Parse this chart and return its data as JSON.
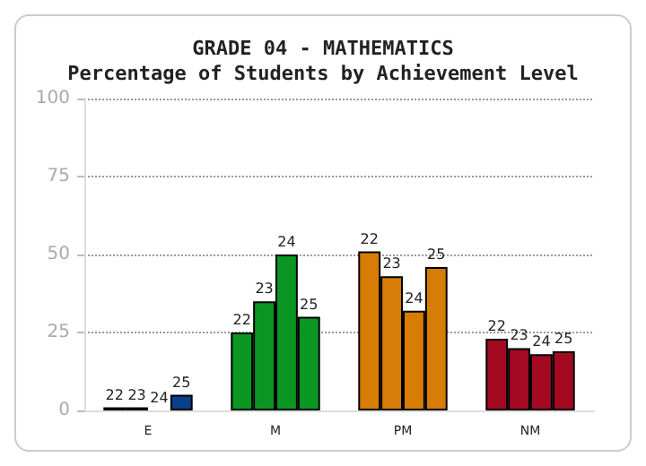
{
  "chart_data": {
    "type": "bar",
    "title": "GRADE 04 - MATHEMATICS\nPercentage of Students by Achievement Level",
    "categories": [
      "E",
      "M",
      "PM",
      "NM"
    ],
    "series": [
      {
        "name": "22",
        "colors": [
          "#0a3f8a",
          "#0b9623",
          "#d77c06",
          "#a30a22"
        ],
        "values": [
          1,
          25,
          51,
          23
        ]
      },
      {
        "name": "23",
        "colors": [
          "#0a3f8a",
          "#0b9623",
          "#d77c06",
          "#a30a22"
        ],
        "values": [
          1,
          35,
          43,
          20
        ]
      },
      {
        "name": "24",
        "colors": [
          "#0a3f8a",
          "#0b9623",
          "#d77c06",
          "#a30a22"
        ],
        "values": [
          0,
          50,
          32,
          18
        ]
      },
      {
        "name": "25",
        "colors": [
          "#0a3f8a",
          "#0b9623",
          "#d77c06",
          "#a30a22"
        ],
        "values": [
          5,
          30,
          46,
          19
        ]
      }
    ],
    "ylim": [
      0,
      100
    ],
    "yticks": [
      0,
      25,
      50,
      75,
      100
    ],
    "grid": "y",
    "legend": false
  }
}
